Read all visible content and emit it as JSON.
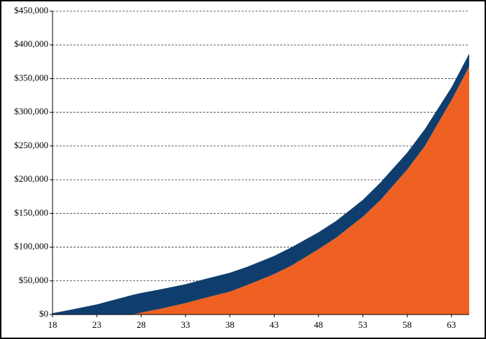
{
  "chart_data": {
    "type": "stacked_area",
    "x": [
      18,
      20,
      23,
      25,
      27,
      28,
      30,
      33,
      35,
      38,
      40,
      43,
      45,
      48,
      50,
      53,
      55,
      58,
      60,
      63,
      65
    ],
    "series": [
      {
        "color": "#ee6122",
        "values": [
          0,
          0,
          0,
          0,
          0,
          3000,
          8000,
          17000,
          24000,
          34000,
          44000,
          60000,
          73000,
          97000,
          114000,
          145000,
          170000,
          215000,
          250000,
          318000,
          368000
        ]
      },
      {
        "color": "#0f3e6e",
        "values": [
          2000,
          7000,
          15000,
          22000,
          29000,
          29000,
          29000,
          28000,
          28000,
          28000,
          27000,
          27000,
          27000,
          25000,
          25000,
          25000,
          26000,
          25000,
          25000,
          19000,
          19000
        ]
      }
    ],
    "xlim": [
      18,
      65
    ],
    "xticks": [
      18,
      23,
      28,
      33,
      38,
      43,
      48,
      53,
      58,
      63
    ],
    "ylim": [
      0,
      450000
    ],
    "yticks": [
      {
        "value": 0,
        "label": "$0"
      },
      {
        "value": 50000,
        "label": "$50,000"
      },
      {
        "value": 100000,
        "label": "$100,000"
      },
      {
        "value": 150000,
        "label": "$150,000"
      },
      {
        "value": 200000,
        "label": "$200,000"
      },
      {
        "value": 250000,
        "label": "$250,000"
      },
      {
        "value": 300000,
        "label": "$300,000"
      },
      {
        "value": 350000,
        "label": "$350,000"
      },
      {
        "value": 400000,
        "label": "$400,000"
      },
      {
        "value": 450000,
        "label": "$450,000"
      }
    ],
    "grid": true
  }
}
